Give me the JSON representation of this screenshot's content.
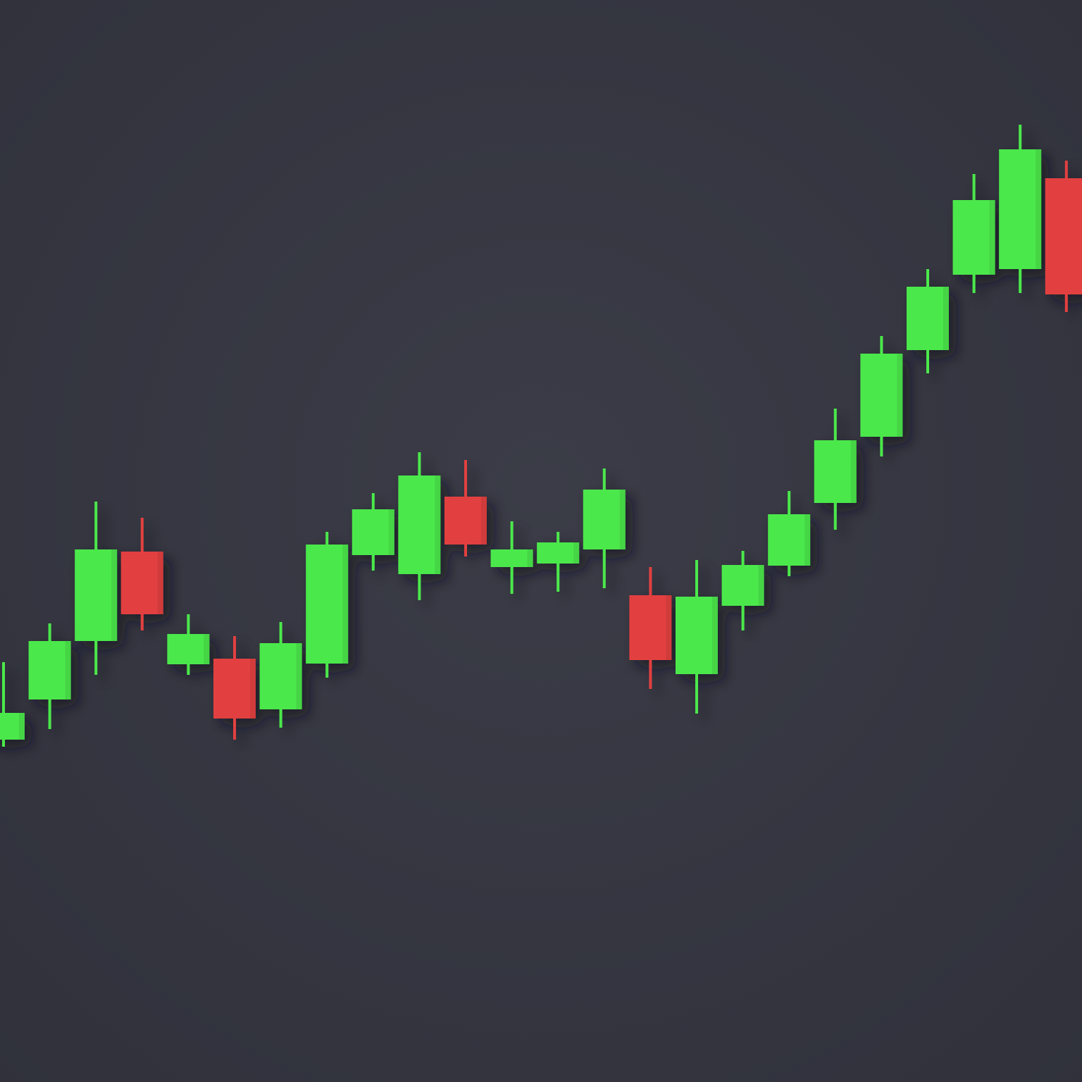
{
  "chart_data": {
    "type": "candlestick",
    "categories": [
      null,
      null,
      null,
      null,
      null,
      null,
      null,
      null,
      null,
      null,
      null,
      null,
      null,
      null,
      null,
      null,
      null,
      null,
      null,
      null,
      null,
      null,
      null,
      null
    ],
    "open": [
      486,
      543,
      626,
      753,
      593,
      601,
      529,
      594,
      748,
      721,
      831,
      731,
      736,
      756,
      691,
      579,
      676,
      733,
      822,
      916,
      1039,
      1146,
      1154,
      1283
    ],
    "high": [
      596,
      651,
      824,
      801,
      664,
      633,
      653,
      781,
      836,
      894,
      883,
      796,
      781,
      871,
      731,
      741,
      754,
      839,
      956,
      1059,
      1154,
      1289,
      1359,
      1308
    ],
    "low": [
      476,
      501,
      578,
      641,
      578,
      486,
      503,
      574,
      726,
      684,
      746,
      693,
      696,
      701,
      558,
      523,
      641,
      718,
      784,
      888,
      1006,
      1120,
      1120,
      1093
    ],
    "close": [
      524,
      626,
      756,
      664,
      636,
      516,
      623,
      763,
      813,
      861,
      763,
      756,
      766,
      841,
      599,
      689,
      734,
      806,
      911,
      1034,
      1129,
      1252,
      1324,
      1118
    ],
    "up_color": "#4be84b",
    "down_color": "#e2413f"
  }
}
